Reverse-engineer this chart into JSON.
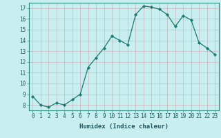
{
  "x": [
    0,
    1,
    2,
    3,
    4,
    5,
    6,
    7,
    8,
    9,
    10,
    11,
    12,
    13,
    14,
    15,
    16,
    17,
    18,
    19,
    20,
    21,
    22,
    23
  ],
  "y": [
    8.8,
    8.0,
    7.8,
    8.2,
    8.0,
    8.5,
    9.0,
    11.5,
    12.4,
    13.3,
    14.4,
    14.0,
    13.6,
    16.4,
    17.2,
    17.1,
    16.9,
    16.4,
    15.3,
    16.3,
    15.9,
    13.8,
    13.3,
    12.7
  ],
  "line_color": "#1a7a6e",
  "marker_color": "#1a7a6e",
  "bg_color": "#c8eef0",
  "grid_color_minor": "#b0d8da",
  "grid_color_major": "#9ecfd1",
  "xlabel": "Humidex (Indice chaleur)",
  "ylim": [
    7.5,
    17.5
  ],
  "xlim": [
    -0.5,
    23.5
  ],
  "yticks": [
    8,
    9,
    10,
    11,
    12,
    13,
    14,
    15,
    16,
    17
  ],
  "xticks": [
    0,
    1,
    2,
    3,
    4,
    5,
    6,
    7,
    8,
    9,
    10,
    11,
    12,
    13,
    14,
    15,
    16,
    17,
    18,
    19,
    20,
    21,
    22,
    23
  ],
  "tick_fontsize": 5.5,
  "label_fontsize": 6.5
}
